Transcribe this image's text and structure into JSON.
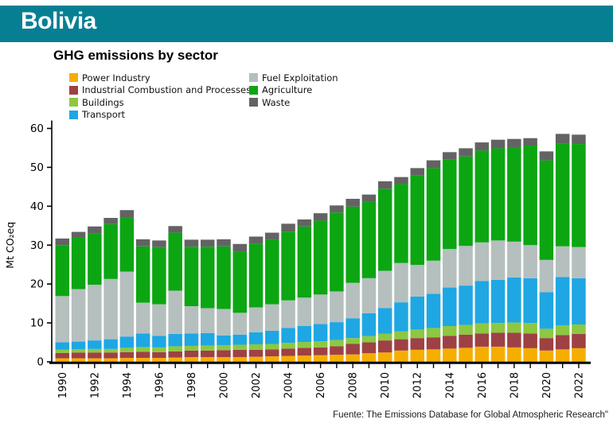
{
  "header": {
    "title": "Bolivia",
    "bg_color": "#077f93"
  },
  "footer": {
    "source": "Fuente: The Emissions Database for Global Atmospheric Research\""
  },
  "chart_data": {
    "type": "bar",
    "stacked": true,
    "title": "GHG emissions by sector",
    "xlabel": "",
    "ylabel": "Mt CO₂eq",
    "ylim": [
      0,
      60
    ],
    "ytick_step": 10,
    "xtick_label_every": 2,
    "grid": false,
    "legend_position": "top",
    "legend_columns": [
      4,
      3
    ],
    "axis_color": "#000000",
    "categories": [
      1990,
      1991,
      1992,
      1993,
      1994,
      1995,
      1996,
      1997,
      1998,
      1999,
      2000,
      2001,
      2002,
      2003,
      2004,
      2005,
      2006,
      2007,
      2008,
      2009,
      2010,
      2011,
      2012,
      2013,
      2014,
      2015,
      2016,
      2017,
      2018,
      2019,
      2020,
      2021,
      2022
    ],
    "series": [
      {
        "name": "Power Industry",
        "color": "#f5ae00",
        "values": [
          0.9,
          0.9,
          0.9,
          0.9,
          1.0,
          1.0,
          1.0,
          1.1,
          1.2,
          1.2,
          1.2,
          1.2,
          1.3,
          1.4,
          1.5,
          1.6,
          1.7,
          1.8,
          1.9,
          2.2,
          2.4,
          2.9,
          3.1,
          3.2,
          3.4,
          3.6,
          3.9,
          3.9,
          3.7,
          3.5,
          2.9,
          3.2,
          3.5
        ]
      },
      {
        "name": "Industrial Combustion and Processes",
        "color": "#9e4144",
        "values": [
          1.4,
          1.5,
          1.5,
          1.5,
          1.5,
          1.6,
          1.5,
          1.6,
          1.7,
          1.7,
          1.8,
          1.9,
          1.8,
          1.8,
          1.9,
          2.0,
          2.0,
          2.2,
          2.7,
          2.8,
          3.1,
          2.9,
          3.0,
          3.1,
          3.3,
          3.4,
          3.4,
          3.6,
          3.8,
          3.8,
          3.2,
          3.7,
          3.7
        ]
      },
      {
        "name": "Buildings",
        "color": "#8cc841",
        "values": [
          0.8,
          0.8,
          0.9,
          0.9,
          1.1,
          1.2,
          1.2,
          1.3,
          1.2,
          1.3,
          1.3,
          1.3,
          1.4,
          1.4,
          1.5,
          1.5,
          1.6,
          1.6,
          1.5,
          1.6,
          1.7,
          2.0,
          2.2,
          2.4,
          2.5,
          2.5,
          2.6,
          2.5,
          2.6,
          2.7,
          2.4,
          2.5,
          2.4
        ]
      },
      {
        "name": "Transport",
        "color": "#1ea7e3",
        "values": [
          1.9,
          2.0,
          2.2,
          2.5,
          2.9,
          3.5,
          3.0,
          3.2,
          3.2,
          3.2,
          2.5,
          2.6,
          3.1,
          3.4,
          3.8,
          4.1,
          4.4,
          4.6,
          5.1,
          5.9,
          6.6,
          7.5,
          8.5,
          8.8,
          9.9,
          10.1,
          10.9,
          11.1,
          11.6,
          11.5,
          9.4,
          12.4,
          11.9
        ]
      },
      {
        "name": "Fuel Exploitation",
        "color": "#b5bfbe",
        "values": [
          11.9,
          13.5,
          14.3,
          15.5,
          16.7,
          7.9,
          8.1,
          11.1,
          7.0,
          6.4,
          6.8,
          5.6,
          6.4,
          6.8,
          7.1,
          7.3,
          7.6,
          7.9,
          9.1,
          9.0,
          9.6,
          10.1,
          8.1,
          8.5,
          9.9,
          10.2,
          9.9,
          10.1,
          9.2,
          8.5,
          8.3,
          7.9,
          8.0
        ]
      },
      {
        "name": "Agriculture",
        "color": "#0ba612",
        "values": [
          13.1,
          13.2,
          13.3,
          14.1,
          14.0,
          14.5,
          14.7,
          14.9,
          15.3,
          15.8,
          16.1,
          15.8,
          16.3,
          16.6,
          17.7,
          18.3,
          19.0,
          20.3,
          19.6,
          19.6,
          21.1,
          20.3,
          23.0,
          23.8,
          23.0,
          23.0,
          23.6,
          23.7,
          24.3,
          25.6,
          25.6,
          26.5,
          26.5
        ]
      },
      {
        "name": "Waste",
        "color": "#636363",
        "values": [
          1.7,
          1.5,
          1.7,
          1.6,
          1.8,
          1.8,
          1.7,
          1.7,
          1.8,
          1.8,
          1.8,
          1.9,
          1.9,
          1.8,
          2.0,
          1.8,
          1.9,
          1.8,
          2.0,
          1.9,
          1.9,
          1.8,
          1.9,
          2.0,
          1.9,
          2.1,
          2.1,
          2.2,
          2.1,
          1.9,
          2.3,
          2.4,
          2.4
        ]
      }
    ]
  }
}
